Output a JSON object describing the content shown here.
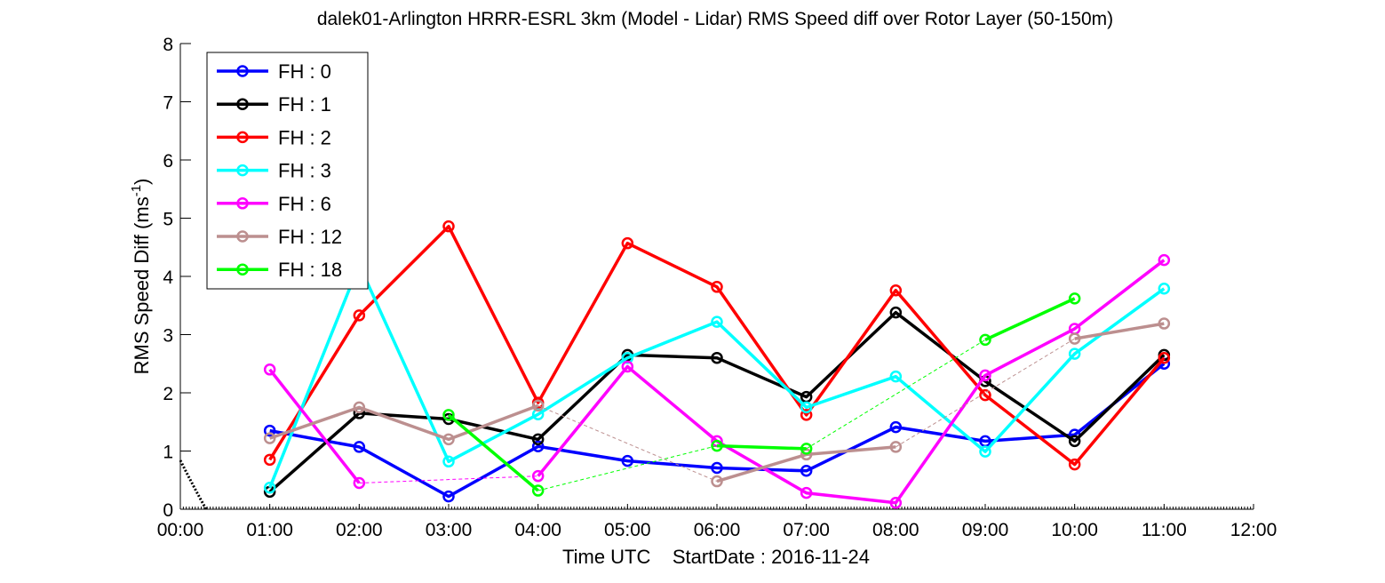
{
  "chart_data": {
    "type": "line",
    "title": "dalek01-Arlington HRRR-ESRL 3km (Model - Lidar) RMS Speed diff over Rotor Layer (50-150m)",
    "xlabel": "Time UTC    StartDate : 2016-11-24",
    "ylabel_main": "RMS Speed Diff (ms",
    "ylabel_sup": "-1",
    "ylabel_end": ")",
    "xlim": [
      0,
      12
    ],
    "ylim": [
      0,
      8
    ],
    "x_ticks": [
      0,
      1,
      2,
      3,
      4,
      5,
      6,
      7,
      8,
      9,
      10,
      11,
      12
    ],
    "x_tick_labels": [
      "00:00",
      "01:00",
      "02:00",
      "03:00",
      "04:00",
      "05:00",
      "06:00",
      "07:00",
      "08:00",
      "09:00",
      "10:00",
      "11:00",
      "12:00"
    ],
    "y_ticks": [
      0,
      1,
      2,
      3,
      4,
      5,
      6,
      7,
      8
    ],
    "y_tick_labels": [
      "0",
      "1",
      "2",
      "3",
      "4",
      "5",
      "6",
      "7",
      "8"
    ],
    "grid": false,
    "legend_position": "top-left",
    "series": [
      {
        "name": "FH : 0",
        "color": "#0000ff",
        "points": [
          [
            1,
            1.35
          ],
          [
            2,
            1.07
          ],
          [
            3,
            0.22
          ],
          [
            4,
            1.08
          ],
          [
            5,
            0.83
          ],
          [
            6,
            0.71
          ],
          [
            7,
            0.66
          ],
          [
            8,
            1.41
          ],
          [
            9,
            1.17
          ],
          [
            10,
            1.28
          ],
          [
            11,
            2.5
          ]
        ],
        "segments": [
          [
            0,
            10
          ]
        ],
        "dashed": []
      },
      {
        "name": "FH : 1",
        "color": "#000000",
        "points": [
          [
            1,
            0.3
          ],
          [
            2,
            1.65
          ],
          [
            3,
            1.55
          ],
          [
            4,
            1.2
          ],
          [
            5,
            2.65
          ],
          [
            6,
            2.6
          ],
          [
            7,
            1.93
          ],
          [
            8,
            3.38
          ],
          [
            9,
            2.2
          ],
          [
            10,
            1.17
          ],
          [
            11,
            2.65
          ]
        ],
        "segments": [
          [
            0,
            10
          ]
        ],
        "dashed": []
      },
      {
        "name": "FH : 2",
        "color": "#ff0000",
        "points": [
          [
            1,
            0.85
          ],
          [
            2,
            3.33
          ],
          [
            3,
            4.86
          ],
          [
            4,
            1.83
          ],
          [
            5,
            4.57
          ],
          [
            6,
            3.82
          ],
          [
            7,
            1.62
          ],
          [
            8,
            3.76
          ],
          [
            9,
            1.96
          ],
          [
            10,
            0.77
          ],
          [
            11,
            2.6
          ]
        ],
        "segments": [
          [
            0,
            10
          ]
        ],
        "dashed": []
      },
      {
        "name": "FH : 3",
        "color": "#00ffff",
        "points": [
          [
            1,
            0.37
          ],
          [
            2,
            4.2
          ],
          [
            3,
            0.82
          ],
          [
            4,
            1.63
          ],
          [
            5,
            2.6
          ],
          [
            6,
            3.22
          ],
          [
            7,
            1.75
          ],
          [
            8,
            2.28
          ],
          [
            9,
            0.99
          ],
          [
            10,
            2.67
          ],
          [
            11,
            3.79
          ]
        ],
        "segments": [
          [
            0,
            10
          ]
        ],
        "dashed": []
      },
      {
        "name": "FH : 6",
        "color": "#ff00ff",
        "points": [
          [
            1,
            2.4
          ],
          [
            2,
            0.45
          ],
          [
            4,
            0.57
          ],
          [
            5,
            2.45
          ],
          [
            6,
            1.17
          ],
          [
            7,
            0.28
          ],
          [
            8,
            0.11
          ],
          [
            9,
            2.3
          ],
          [
            10,
            3.1
          ],
          [
            11,
            4.28
          ]
        ],
        "segments": [
          [
            0,
            1
          ],
          [
            2,
            9
          ]
        ],
        "dashed": [
          [
            1,
            2
          ]
        ]
      },
      {
        "name": "FH : 12",
        "color": "#bc8f8f",
        "points": [
          [
            1,
            1.22
          ],
          [
            2,
            1.75
          ],
          [
            3,
            1.2
          ],
          [
            4,
            1.78
          ],
          [
            6,
            0.48
          ],
          [
            7,
            0.94
          ],
          [
            8,
            1.07
          ],
          [
            10,
            2.93
          ],
          [
            11,
            3.19
          ]
        ],
        "segments": [
          [
            0,
            3
          ],
          [
            4,
            6
          ],
          [
            7,
            8
          ]
        ],
        "dashed": [
          [
            3,
            4
          ],
          [
            6,
            7
          ]
        ]
      },
      {
        "name": "FH : 18",
        "color": "#00ff00",
        "points": [
          [
            3,
            1.62
          ],
          [
            4,
            0.32
          ],
          [
            6,
            1.09
          ],
          [
            7,
            1.04
          ],
          [
            9,
            2.91
          ],
          [
            10,
            3.62
          ]
        ],
        "segments": [
          [
            0,
            1
          ],
          [
            2,
            3
          ],
          [
            4,
            5
          ]
        ],
        "dashed": [
          [
            1,
            2
          ],
          [
            3,
            4
          ]
        ]
      }
    ]
  }
}
